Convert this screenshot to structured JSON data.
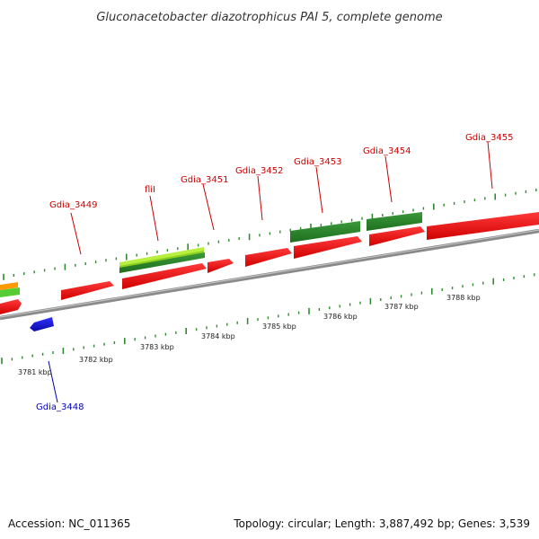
{
  "title": "Gluconacetobacter diazotrophicus PAI 5, complete genome",
  "footer": {
    "accession": "Accession: NC_011365",
    "summary": "Topology: circular; Length: 3,887,492 bp; Genes: 3,539"
  },
  "colors": {
    "forward_gene": "#ee1111",
    "reverse_gene": "#1a1ad6",
    "forward_label": "#cc0000",
    "reverse_label": "#0000bb",
    "dark_green": "#2e8b2e",
    "light_green": "#b8f040",
    "orange": "#ff9900",
    "backbone": "#8a8a8a",
    "tick": "#2e8b2e"
  },
  "scale_labels": [
    "3781 kbp",
    "3782 kbp",
    "3783 kbp",
    "3784 kbp",
    "3785 kbp",
    "3786 kbp",
    "3787 kbp",
    "3788 kbp"
  ],
  "gene_labels": [
    {
      "id": "gdia-3449",
      "text": "Gdia_3449",
      "strand": "forward"
    },
    {
      "id": "flil",
      "text": "fliI",
      "strand": "forward"
    },
    {
      "id": "gdia-3451",
      "text": "Gdia_3451",
      "strand": "forward"
    },
    {
      "id": "gdia-3452",
      "text": "Gdia_3452",
      "strand": "forward"
    },
    {
      "id": "gdia-3453",
      "text": "Gdia_3453",
      "strand": "forward"
    },
    {
      "id": "gdia-3454",
      "text": "Gdia_3454",
      "strand": "forward"
    },
    {
      "id": "gdia-3455",
      "text": "Gdia_3455",
      "strand": "forward"
    },
    {
      "id": "gdia-3448",
      "text": "Gdia_3448",
      "strand": "reverse"
    }
  ]
}
